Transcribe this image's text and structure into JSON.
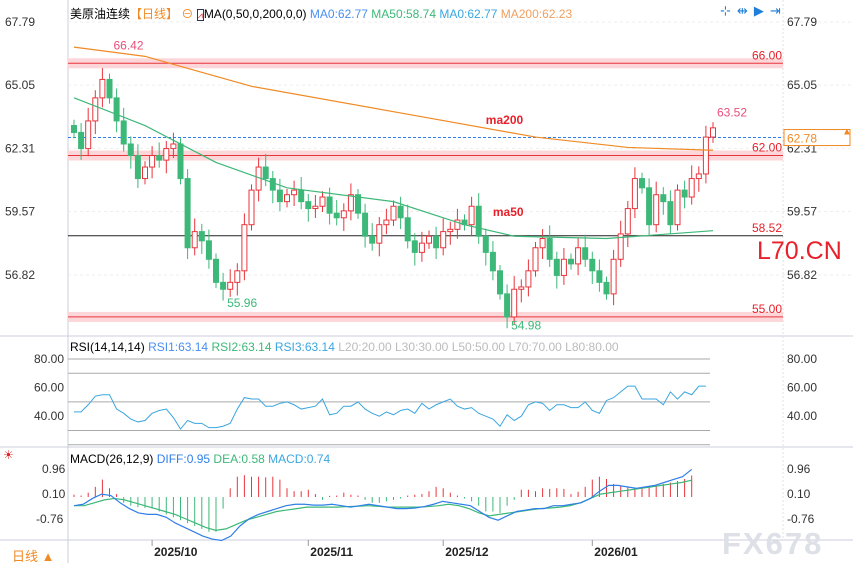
{
  "header": {
    "symbol": "美原油连续",
    "period": "【日线】",
    "ma_params": "MA(0,50,0,200,0,0)",
    "ma0": "MA0:62.77",
    "ma50": "MA50:58.74",
    "ma0b": "MA0:62.77",
    "ma200": "MA200:62.23"
  },
  "rsi_header": {
    "name": "RSI(14,14,14)",
    "rsi1": "RSI1:63.14",
    "rsi2": "RSI2:63.14",
    "rsi3": "RSI3:63.14",
    "l20": "L20:20.00",
    "l30": "L30:30.00",
    "l50": "L50:50.00",
    "l70": "L70:70.00",
    "l80": "L80:80.00"
  },
  "macd_header": {
    "name": "MACD(26,12,9)",
    "diff": "DIFF:0.95",
    "dea": "DEA:0.58",
    "macd": "MACD:0.74"
  },
  "footer": {
    "period_button": "日线 ▲"
  },
  "watermarks": {
    "l70": "L70.CN",
    "fx678": "FX678"
  },
  "colors": {
    "up": "#e8353c",
    "down": "#3cb878",
    "ma50": "#3cb878",
    "ma200": "#f08a24",
    "rsi": "#3aa6e0",
    "diff": "#2f7fe8",
    "dea": "#3cb878"
  },
  "chart_data": [
    {
      "type": "candlestick",
      "title": "美原油连续 日线",
      "price_ticks": [
        "67.79",
        "65.05",
        "62.31",
        "59.57",
        "56.82"
      ],
      "ylim": [
        54.3,
        67.79
      ],
      "x_ticks": [
        {
          "label": "2025/10",
          "index": 11
        },
        {
          "label": "2025/11",
          "index": 33
        },
        {
          "label": "2025/12",
          "index": 52
        },
        {
          "label": "2026/01",
          "index": 73
        }
      ],
      "closes": [
        63,
        62.3,
        63.5,
        64.5,
        65.3,
        64.5,
        63.5,
        62.5,
        62.0,
        61.0,
        61.5,
        62.0,
        61.8,
        62.3,
        62.5,
        61.0,
        58,
        58.7,
        58.3,
        57.5,
        56.5,
        56.2,
        56.5,
        57.0,
        59.0,
        60.5,
        61.5,
        61.0,
        60.5,
        60.0,
        60.3,
        60.5,
        60.0,
        59.7,
        59.8,
        60.2,
        59.5,
        59.3,
        59.6,
        60.3,
        59.5,
        58.5,
        58.2,
        59.0,
        59.2,
        59.8,
        59.3,
        58.3,
        57.8,
        58.2,
        58.5,
        58.0,
        58.7,
        58.8,
        59.2,
        59.0,
        59.8,
        58.5,
        57.8,
        57.0,
        56.0,
        55.0,
        56.2,
        56.3,
        57.0,
        58.0,
        58.4,
        57.5,
        56.8,
        57.5,
        57.3,
        58.0,
        57.5,
        57.0,
        56.5,
        56.0,
        57.5,
        58.6,
        59.7,
        61.0,
        60.6,
        59.0,
        60.3,
        60.0,
        59.0,
        60.5,
        60.2,
        61.0,
        61.2,
        62.8,
        63.2
      ],
      "ma50": [
        [
          0,
          64.5
        ],
        [
          10,
          63.3
        ],
        [
          20,
          61.7
        ],
        [
          30,
          60.6
        ],
        [
          45,
          60.0
        ],
        [
          55,
          59.0
        ],
        [
          62,
          58.5
        ],
        [
          75,
          58.4
        ],
        [
          90,
          58.74
        ]
      ],
      "ma200": [
        [
          0,
          66.7
        ],
        [
          10,
          66.3
        ],
        [
          25,
          65.0
        ],
        [
          45,
          63.9
        ],
        [
          65,
          62.8
        ],
        [
          78,
          62.35
        ],
        [
          90,
          62.23
        ]
      ],
      "levels": [
        {
          "value": "66.00",
          "v": 66.0,
          "style": "band"
        },
        {
          "value": "62.00",
          "v": 62.0,
          "style": "band"
        },
        {
          "value": "58.52",
          "v": 58.52,
          "style": "line"
        },
        {
          "value": "55.00",
          "v": 55.0,
          "style": "band"
        }
      ],
      "current": {
        "label": "62.78",
        "v": 62.78
      },
      "annotations": [
        {
          "text": "66.42",
          "index": 5,
          "v": 66.42
        },
        {
          "text": "55.96",
          "index": 21,
          "v": 55.96
        },
        {
          "text": "54.98",
          "index": 61,
          "v": 54.98
        },
        {
          "text": "63.52",
          "index": 90,
          "v": 63.52
        },
        {
          "text": "ma200",
          "index": 58,
          "v": 63.2
        },
        {
          "text": "ma50",
          "index": 59,
          "v": 59.2
        }
      ]
    },
    {
      "type": "line",
      "title": "RSI(14,14,14)",
      "ticks": [
        "80.00",
        "60.00",
        "40.00"
      ],
      "ylim": [
        20,
        80
      ],
      "guides": [
        80,
        70,
        50,
        30,
        20
      ],
      "values": [
        43,
        43,
        48,
        54,
        55,
        55,
        45,
        42,
        38,
        36,
        37,
        42,
        44,
        45,
        39,
        31,
        37,
        35,
        35,
        32,
        32,
        33,
        35,
        45,
        53,
        52,
        52,
        47,
        47,
        49,
        50,
        48,
        45,
        46,
        47,
        52,
        41,
        42,
        47,
        47,
        50,
        45,
        42,
        40,
        43,
        41,
        44,
        45,
        42,
        49,
        45,
        48,
        50,
        52,
        47,
        45,
        46,
        42,
        40,
        38,
        33,
        41,
        37,
        40,
        48,
        50,
        49,
        44,
        48,
        48,
        46,
        46,
        50,
        44,
        42,
        51,
        53,
        57,
        61,
        61,
        52,
        52,
        52,
        48,
        57,
        52,
        57,
        55,
        61,
        61
      ],
      "label": "RSI1"
    },
    {
      "type": "bar+line",
      "title": "MACD(26,12,9)",
      "ticks": [
        "0.96",
        "0.10",
        "-0.76"
      ],
      "ylim": [
        -1.4,
        1.1
      ],
      "macd": [
        0.08,
        0.05,
        0.15,
        0.35,
        0.6,
        0.3,
        0.1,
        -0.2,
        -0.3,
        -0.35,
        -0.38,
        -0.4,
        -0.5,
        -0.6,
        -0.7,
        -0.8,
        -0.9,
        -1.0,
        -1.1,
        -1.2,
        -1.2,
        -0.4,
        0.3,
        0.7,
        0.75,
        0.7,
        0.7,
        0.68,
        0.7,
        0.6,
        0.3,
        0.2,
        0.2,
        0.25,
        0.1,
        -0.1,
        0.04,
        0.05,
        0.15,
        0.08,
        0.05,
        -0.1,
        -0.2,
        -0.2,
        -0.15,
        -0.1,
        -0.05,
        0.05,
        0.08,
        0.1,
        0.2,
        0.35,
        0.3,
        0.15,
        0.05,
        -0.05,
        -0.15,
        -0.3,
        -0.5,
        -0.5,
        -0.55,
        -0.3,
        -0.1,
        0.25,
        0.25,
        0.2,
        0.3,
        0.28,
        0.3,
        0.28,
        0.1,
        0.18,
        0.35,
        0.6,
        0.7,
        0.62,
        0.45,
        0.4,
        0.35,
        0.3,
        0.3,
        0.35,
        0.4,
        0.45,
        0.5,
        0.55,
        0.62,
        0.74
      ],
      "diff": [
        -0.3,
        -0.25,
        -0.05,
        0.1,
        0.05,
        -0.2,
        -0.4,
        -0.55,
        -0.6,
        -0.6,
        -0.7,
        -0.9,
        -1.05,
        -1.2,
        -1.35,
        -1.45,
        -1.5,
        -1.35,
        -1.0,
        -0.75,
        -0.6,
        -0.5,
        -0.4,
        -0.3,
        -0.25,
        -0.25,
        -0.28,
        -0.28,
        -0.25,
        -0.3,
        -0.35,
        -0.3,
        -0.25,
        -0.3,
        -0.35,
        -0.4,
        -0.4,
        -0.38,
        -0.33,
        -0.25,
        -0.15,
        -0.2,
        -0.25,
        -0.3,
        -0.5,
        -0.7,
        -0.8,
        -0.65,
        -0.5,
        -0.45,
        -0.4,
        -0.4,
        -0.3,
        -0.3,
        -0.25,
        -0.2,
        -0.05,
        0.2,
        0.4,
        0.4,
        0.35,
        0.3,
        0.35,
        0.4,
        0.5,
        0.6,
        0.7,
        0.95
      ],
      "dea": [
        -0.3,
        -0.3,
        -0.2,
        -0.1,
        -0.05,
        -0.1,
        -0.2,
        -0.3,
        -0.4,
        -0.5,
        -0.6,
        -0.75,
        -0.9,
        -1.05,
        -1.15,
        -1.1,
        -0.95,
        -0.8,
        -0.7,
        -0.6,
        -0.5,
        -0.45,
        -0.4,
        -0.35,
        -0.35,
        -0.35,
        -0.35,
        -0.33,
        -0.32,
        -0.3,
        -0.32,
        -0.35,
        -0.35,
        -0.35,
        -0.35,
        -0.33,
        -0.3,
        -0.25,
        -0.3,
        -0.4,
        -0.55,
        -0.65,
        -0.6,
        -0.55,
        -0.5,
        -0.45,
        -0.4,
        -0.38,
        -0.35,
        -0.3,
        -0.2,
        -0.05,
        0.1,
        0.15,
        0.2,
        0.25,
        0.3,
        0.35,
        0.4,
        0.45,
        0.5,
        0.58
      ]
    }
  ]
}
